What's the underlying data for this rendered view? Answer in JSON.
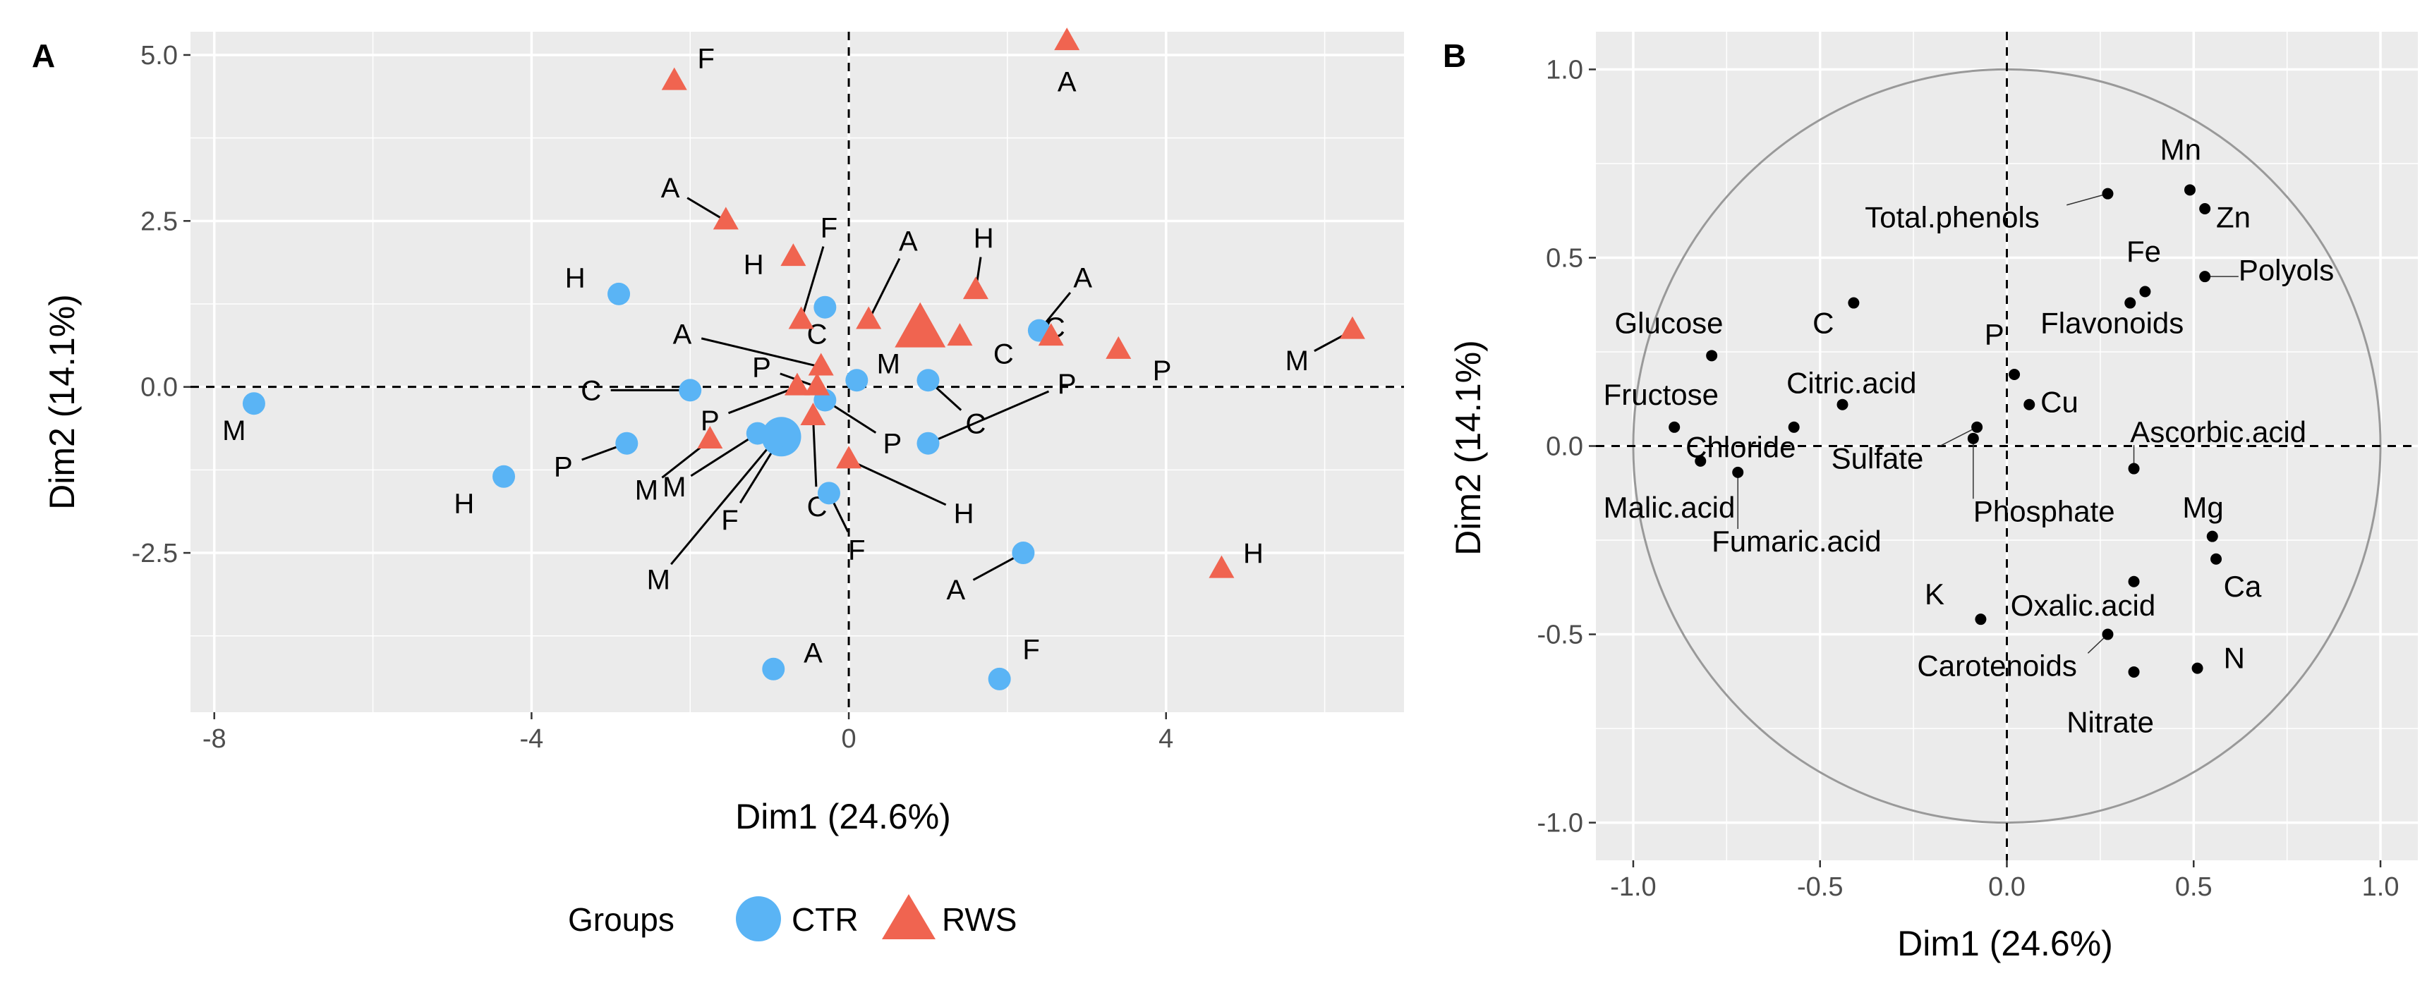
{
  "chart_data": [
    {
      "panel_label": "A",
      "type": "scatter",
      "xlabel": "Dim1 (24.6%)",
      "ylabel": "Dim2 (14.1%)",
      "xlim": [
        -8.3,
        7.0
      ],
      "ylim": [
        -4.9,
        5.35
      ],
      "xticks": [
        -8,
        -4,
        0,
        4
      ],
      "xtick_labels": [
        "-8",
        "-4",
        "0",
        "4"
      ],
      "yticks": [
        5.0,
        2.5,
        0.0,
        -2.5
      ],
      "ytick_labels": [
        "5.0",
        "2.5",
        "0.0",
        "-2.5"
      ],
      "grid": true,
      "reference_lines": {
        "x": 0,
        "y": 0,
        "style": "dashed"
      },
      "legend": {
        "title": "Groups",
        "position": "bottom",
        "entries": [
          {
            "label": "CTR",
            "shape": "circle",
            "color": "#5ab4f5"
          },
          {
            "label": "RWS",
            "shape": "triangle",
            "color": "#f06450"
          }
        ]
      },
      "series": [
        {
          "name": "CTR",
          "points": [
            {
              "label": "M",
              "x": -7.5,
              "y": -0.25,
              "lx": -7.75,
              "ly": -0.65
            },
            {
              "label": "H",
              "x": -4.35,
              "y": -1.35,
              "lx": -4.85,
              "ly": -1.75
            },
            {
              "label": "P",
              "x": -2.8,
              "y": -0.85,
              "lx": -3.6,
              "ly": -1.2
            },
            {
              "label": "C",
              "x": -2.0,
              "y": -0.05,
              "lx": -3.25,
              "ly": -0.05
            },
            {
              "label": "H",
              "x": -2.9,
              "y": 1.4,
              "lx": -3.45,
              "ly": 1.65
            },
            {
              "label": "C",
              "x": -0.3,
              "y": 1.2,
              "lx": -0.4,
              "ly": 0.8
            },
            {
              "label": "M",
              "x": 0.1,
              "y": 0.1,
              "lx": 0.5,
              "ly": 0.35
            },
            {
              "label": "C",
              "x": 1.0,
              "y": 0.1,
              "lx": 1.6,
              "ly": -0.55
            },
            {
              "label": "P",
              "x": -0.3,
              "y": -0.2,
              "lx": 0.55,
              "ly": -0.85
            },
            {
              "label": "A",
              "x": 2.4,
              "y": 0.85,
              "lx": 2.95,
              "ly": 1.65
            },
            {
              "label": "P",
              "x": 1.0,
              "y": -0.85,
              "lx": 2.75,
              "ly": 0.05
            },
            {
              "label": "F",
              "x": -0.25,
              "y": -1.6,
              "lx": 0.1,
              "ly": -2.45
            },
            {
              "label": "A",
              "x": 2.2,
              "y": -2.5,
              "lx": 1.35,
              "ly": -3.05
            },
            {
              "label": "F",
              "x": 1.9,
              "y": -4.4,
              "lx": 2.3,
              "ly": -3.95
            },
            {
              "label": "A",
              "x": -0.95,
              "y": -4.25,
              "lx": -0.45,
              "ly": -4.0
            },
            {
              "label": "M",
              "x": -1.15,
              "y": -0.7,
              "lx": -2.2,
              "ly": -1.5
            },
            {
              "label": "F",
              "x": -0.85,
              "y": -0.75,
              "lx": -1.5,
              "ly": -2.0
            },
            {
              "label": "M",
              "x": -0.9,
              "y": -0.75,
              "lx": -2.4,
              "ly": -2.9
            }
          ],
          "centroid": {
            "x": -0.85,
            "y": -0.75
          }
        },
        {
          "name": "RWS",
          "points": [
            {
              "label": "F",
              "x": -2.2,
              "y": 4.6,
              "lx": -1.8,
              "ly": 4.95
            },
            {
              "label": "A",
              "x": 2.75,
              "y": 5.2,
              "lx": 2.75,
              "ly": 4.6
            },
            {
              "label": "A",
              "x": -1.55,
              "y": 2.5,
              "lx": -2.25,
              "ly": 3.0
            },
            {
              "label": "H",
              "x": -0.7,
              "y": 1.95,
              "lx": -1.2,
              "ly": 1.85
            },
            {
              "label": "F",
              "x": -0.6,
              "y": 1.0,
              "lx": -0.25,
              "ly": 2.4
            },
            {
              "label": "A",
              "x": 0.25,
              "y": 1.0,
              "lx": 0.75,
              "ly": 2.2
            },
            {
              "label": "H",
              "x": 1.6,
              "y": 1.45,
              "lx": 1.7,
              "ly": 2.25
            },
            {
              "label": "C",
              "x": 1.4,
              "y": 0.75,
              "lx": 1.95,
              "ly": 0.5
            },
            {
              "label": "C",
              "x": 2.55,
              "y": 0.75,
              "lx": 2.6,
              "ly": 0.9
            },
            {
              "label": "P",
              "x": 3.4,
              "y": 0.55,
              "lx": 3.95,
              "ly": 0.25
            },
            {
              "label": "M",
              "x": 6.35,
              "y": 0.85,
              "lx": 5.65,
              "ly": 0.4
            },
            {
              "label": "A",
              "x": -0.35,
              "y": 0.3,
              "lx": -2.1,
              "ly": 0.8
            },
            {
              "label": "P",
              "x": -0.4,
              "y": 0.0,
              "lx": -1.1,
              "ly": 0.3
            },
            {
              "label": "P",
              "x": -0.65,
              "y": 0.0,
              "lx": -1.75,
              "ly": -0.5
            },
            {
              "label": "C",
              "x": -0.45,
              "y": -0.45,
              "lx": -0.4,
              "ly": -1.8
            },
            {
              "label": "M",
              "x": -1.75,
              "y": -0.8,
              "lx": -2.55,
              "ly": -1.55
            },
            {
              "label": "H",
              "x": 0.0,
              "y": -1.1,
              "lx": 1.45,
              "ly": -1.9
            },
            {
              "label": "H",
              "x": 4.7,
              "y": -2.75,
              "lx": 5.1,
              "ly": -2.5
            }
          ],
          "centroid": {
            "x": 0.9,
            "y": 0.85
          }
        }
      ]
    },
    {
      "panel_label": "B",
      "type": "scatter",
      "xlabel": "Dim1 (24.6%)",
      "ylabel": "Dim2 (14.1%)",
      "xlim": [
        -1.1,
        1.1
      ],
      "ylim": [
        -1.1,
        1.1
      ],
      "xticks": [
        -1.0,
        -0.5,
        0.0,
        0.5,
        1.0
      ],
      "xtick_labels": [
        "-1.0",
        "-0.5",
        "0.0",
        "0.5",
        "1.0"
      ],
      "yticks": [
        1.0,
        0.5,
        0.0,
        -0.5,
        -1.0
      ],
      "ytick_labels": [
        "1.0",
        "0.5",
        "0.0",
        "-0.5",
        "-1.0"
      ],
      "grid": true,
      "reference_lines": {
        "x": 0,
        "y": 0,
        "style": "dashed"
      },
      "unit_circle": true,
      "variables": [
        {
          "label": "Mn",
          "x": 0.49,
          "y": 0.68,
          "lx": 0.41,
          "ly": 0.76
        },
        {
          "label": "Zn",
          "x": 0.53,
          "y": 0.63,
          "lx": 0.56,
          "ly": 0.58
        },
        {
          "label": "Total.phenols",
          "x": 0.27,
          "y": 0.67,
          "lx": -0.38,
          "ly": 0.58
        },
        {
          "label": "Fe",
          "x": 0.33,
          "y": 0.38,
          "lx": 0.32,
          "ly": 0.49
        },
        {
          "label": "Polyols",
          "x": 0.53,
          "y": 0.45,
          "lx": 0.62,
          "ly": 0.44
        },
        {
          "label": "Flavonoids",
          "x": 0.37,
          "y": 0.41,
          "lx": 0.09,
          "ly": 0.3
        },
        {
          "label": "Glucose",
          "x": -0.79,
          "y": 0.24,
          "lx": -1.05,
          "ly": 0.3
        },
        {
          "label": "C",
          "x": -0.41,
          "y": 0.38,
          "lx": -0.52,
          "ly": 0.3
        },
        {
          "label": "P",
          "x": 0.02,
          "y": 0.19,
          "lx": -0.06,
          "ly": 0.27
        },
        {
          "label": "Citric.acid",
          "x": -0.44,
          "y": 0.11,
          "lx": -0.59,
          "ly": 0.14
        },
        {
          "label": "Cu",
          "x": 0.06,
          "y": 0.11,
          "lx": 0.09,
          "ly": 0.09
        },
        {
          "label": "Fructose",
          "x": -0.89,
          "y": 0.05,
          "lx": -1.08,
          "ly": 0.11
        },
        {
          "label": "Chloride",
          "x": -0.57,
          "y": 0.05,
          "lx": -0.86,
          "ly": -0.03
        },
        {
          "label": "Sulfate",
          "x": -0.08,
          "y": 0.05,
          "lx": -0.47,
          "ly": -0.06
        },
        {
          "label": "Ascorbic.acid",
          "x": 0.34,
          "y": -0.06,
          "lx": 0.33,
          "ly": 0.01
        },
        {
          "label": "Malic.acid",
          "x": -0.82,
          "y": -0.04,
          "lx": -1.08,
          "ly": -0.19
        },
        {
          "label": "Phosphate",
          "x": -0.09,
          "y": 0.02,
          "lx": -0.09,
          "ly": -0.2
        },
        {
          "label": "Fumaric.acid",
          "x": -0.72,
          "y": -0.07,
          "lx": -0.79,
          "ly": -0.28
        },
        {
          "label": "Mg",
          "x": 0.55,
          "y": -0.24,
          "lx": 0.47,
          "ly": -0.19
        },
        {
          "label": "Ca",
          "x": 0.56,
          "y": -0.3,
          "lx": 0.58,
          "ly": -0.4
        },
        {
          "label": "K",
          "x": -0.07,
          "y": -0.46,
          "lx": -0.22,
          "ly": -0.42
        },
        {
          "label": "Oxalic.acid",
          "x": 0.34,
          "y": -0.36,
          "lx": 0.01,
          "ly": -0.45
        },
        {
          "label": "Carotenoids",
          "x": 0.27,
          "y": -0.5,
          "lx": -0.24,
          "ly": -0.61
        },
        {
          "label": "N",
          "x": 0.51,
          "y": -0.59,
          "lx": 0.58,
          "ly": -0.59
        },
        {
          "label": "Nitrate",
          "x": 0.34,
          "y": -0.6,
          "lx": 0.16,
          "ly": -0.76
        }
      ]
    }
  ]
}
